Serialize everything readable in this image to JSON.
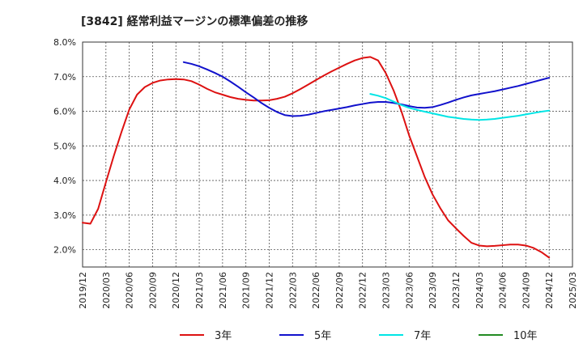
{
  "chart_data": {
    "type": "line",
    "title": "[3842]  経常利益マージンの標準偏差の推移",
    "xlabel": "",
    "ylabel": "",
    "ylim": [
      0.015,
      0.08
    ],
    "y_ticks": [
      "2.0%",
      "3.0%",
      "4.0%",
      "5.0%",
      "6.0%",
      "7.0%",
      "8.0%"
    ],
    "y_tick_values": [
      0.02,
      0.03,
      0.04,
      0.05,
      0.06,
      0.07,
      0.08
    ],
    "x_ticks": [
      "2019/12",
      "2020/03",
      "2020/06",
      "2020/09",
      "2020/12",
      "2021/03",
      "2021/06",
      "2021/09",
      "2021/12",
      "2022/03",
      "2022/06",
      "2022/09",
      "2022/12",
      "2023/03",
      "2023/06",
      "2023/09",
      "2023/12",
      "2024/03",
      "2024/06",
      "2024/09",
      "2024/12",
      "2025/03"
    ],
    "grid": true,
    "legend_position": "bottom",
    "series": [
      {
        "name": "3年",
        "color": "#dd1111",
        "points": [
          [
            "2019/12",
            0.0278
          ],
          [
            "2020/01",
            0.0275
          ],
          [
            "2020/02",
            0.0318
          ],
          [
            "2020/03",
            0.0395
          ],
          [
            "2020/04",
            0.047
          ],
          [
            "2020/05",
            0.054
          ],
          [
            "2020/06",
            0.0605
          ],
          [
            "2020/07",
            0.0648
          ],
          [
            "2020/08",
            0.067
          ],
          [
            "2020/09",
            0.0682
          ],
          [
            "2020/10",
            0.0689
          ],
          [
            "2020/11",
            0.0692
          ],
          [
            "2020/12",
            0.0693
          ],
          [
            "2021/01",
            0.0692
          ],
          [
            "2021/02",
            0.0687
          ],
          [
            "2021/03",
            0.0677
          ],
          [
            "2021/04",
            0.0665
          ],
          [
            "2021/05",
            0.0655
          ],
          [
            "2021/06",
            0.0648
          ],
          [
            "2021/07",
            0.0641
          ],
          [
            "2021/08",
            0.0636
          ],
          [
            "2021/09",
            0.0633
          ],
          [
            "2021/10",
            0.0631
          ],
          [
            "2021/11",
            0.0631
          ],
          [
            "2021/12",
            0.0632
          ],
          [
            "2022/01",
            0.0636
          ],
          [
            "2022/02",
            0.0642
          ],
          [
            "2022/03",
            0.0652
          ],
          [
            "2022/04",
            0.0664
          ],
          [
            "2022/05",
            0.0677
          ],
          [
            "2022/06",
            0.069
          ],
          [
            "2022/07",
            0.0703
          ],
          [
            "2022/08",
            0.0715
          ],
          [
            "2022/09",
            0.0726
          ],
          [
            "2022/10",
            0.0737
          ],
          [
            "2022/11",
            0.0747
          ],
          [
            "2022/12",
            0.0754
          ],
          [
            "2023/01",
            0.0757
          ],
          [
            "2023/02",
            0.0747
          ],
          [
            "2023/03",
            0.071
          ],
          [
            "2023/04",
            0.066
          ],
          [
            "2023/05",
            0.06
          ],
          [
            "2023/06",
            0.053
          ],
          [
            "2023/07",
            0.047
          ],
          [
            "2023/08",
            0.041
          ],
          [
            "2023/09",
            0.036
          ],
          [
            "2023/10",
            0.032
          ],
          [
            "2023/11",
            0.0285
          ],
          [
            "2023/12",
            0.0262
          ],
          [
            "2024/01",
            0.024
          ],
          [
            "2024/02",
            0.022
          ],
          [
            "2024/03",
            0.0212
          ],
          [
            "2024/04",
            0.021
          ],
          [
            "2024/05",
            0.0211
          ],
          [
            "2024/06",
            0.0213
          ],
          [
            "2024/07",
            0.0215
          ],
          [
            "2024/08",
            0.0215
          ],
          [
            "2024/09",
            0.0212
          ],
          [
            "2024/10",
            0.0205
          ],
          [
            "2024/11",
            0.0193
          ],
          [
            "2024/12",
            0.0177
          ]
        ]
      },
      {
        "name": "5年",
        "color": "#1111cc",
        "points": [
          [
            "2021/01",
            0.0742
          ],
          [
            "2021/02",
            0.0737
          ],
          [
            "2021/03",
            0.073
          ],
          [
            "2021/04",
            0.0721
          ],
          [
            "2021/05",
            0.0711
          ],
          [
            "2021/06",
            0.07
          ],
          [
            "2021/07",
            0.0686
          ],
          [
            "2021/08",
            0.0671
          ],
          [
            "2021/09",
            0.0655
          ],
          [
            "2021/10",
            0.064
          ],
          [
            "2021/11",
            0.0624
          ],
          [
            "2021/12",
            0.061
          ],
          [
            "2022/01",
            0.0598
          ],
          [
            "2022/02",
            0.0589
          ],
          [
            "2022/03",
            0.0586
          ],
          [
            "2022/04",
            0.0587
          ],
          [
            "2022/05",
            0.059
          ],
          [
            "2022/06",
            0.0595
          ],
          [
            "2022/07",
            0.06
          ],
          [
            "2022/08",
            0.0604
          ],
          [
            "2022/09",
            0.0608
          ],
          [
            "2022/10",
            0.0612
          ],
          [
            "2022/11",
            0.0617
          ],
          [
            "2022/12",
            0.0621
          ],
          [
            "2023/01",
            0.0625
          ],
          [
            "2023/02",
            0.0627
          ],
          [
            "2023/03",
            0.0627
          ],
          [
            "2023/04",
            0.0624
          ],
          [
            "2023/05",
            0.062
          ],
          [
            "2023/06",
            0.0615
          ],
          [
            "2023/07",
            0.0611
          ],
          [
            "2023/08",
            0.061
          ],
          [
            "2023/09",
            0.0612
          ],
          [
            "2023/10",
            0.0618
          ],
          [
            "2023/11",
            0.0625
          ],
          [
            "2023/12",
            0.0633
          ],
          [
            "2024/01",
            0.064
          ],
          [
            "2024/02",
            0.0646
          ],
          [
            "2024/03",
            0.065
          ],
          [
            "2024/04",
            0.0654
          ],
          [
            "2024/05",
            0.0658
          ],
          [
            "2024/06",
            0.0663
          ],
          [
            "2024/07",
            0.0668
          ],
          [
            "2024/08",
            0.0673
          ],
          [
            "2024/09",
            0.0679
          ],
          [
            "2024/10",
            0.0685
          ],
          [
            "2024/11",
            0.0691
          ],
          [
            "2024/12",
            0.0697
          ]
        ]
      },
      {
        "name": "7年",
        "color": "#00e5e5",
        "points": [
          [
            "2023/01",
            0.065
          ],
          [
            "2023/02",
            0.0645
          ],
          [
            "2023/03",
            0.0638
          ],
          [
            "2023/04",
            0.0628
          ],
          [
            "2023/05",
            0.0618
          ],
          [
            "2023/06",
            0.061
          ],
          [
            "2023/07",
            0.0604
          ],
          [
            "2023/08",
            0.0599
          ],
          [
            "2023/09",
            0.0594
          ],
          [
            "2023/10",
            0.0589
          ],
          [
            "2023/11",
            0.0584
          ],
          [
            "2023/12",
            0.0581
          ],
          [
            "2024/01",
            0.0578
          ],
          [
            "2024/02",
            0.0576
          ],
          [
            "2024/03",
            0.0575
          ],
          [
            "2024/04",
            0.0576
          ],
          [
            "2024/05",
            0.0578
          ],
          [
            "2024/06",
            0.0581
          ],
          [
            "2024/07",
            0.0584
          ],
          [
            "2024/08",
            0.0587
          ],
          [
            "2024/09",
            0.0591
          ],
          [
            "2024/10",
            0.0595
          ],
          [
            "2024/11",
            0.0599
          ],
          [
            "2024/12",
            0.0602
          ]
        ]
      },
      {
        "name": "10年",
        "color": "#228b22",
        "points": []
      }
    ]
  }
}
